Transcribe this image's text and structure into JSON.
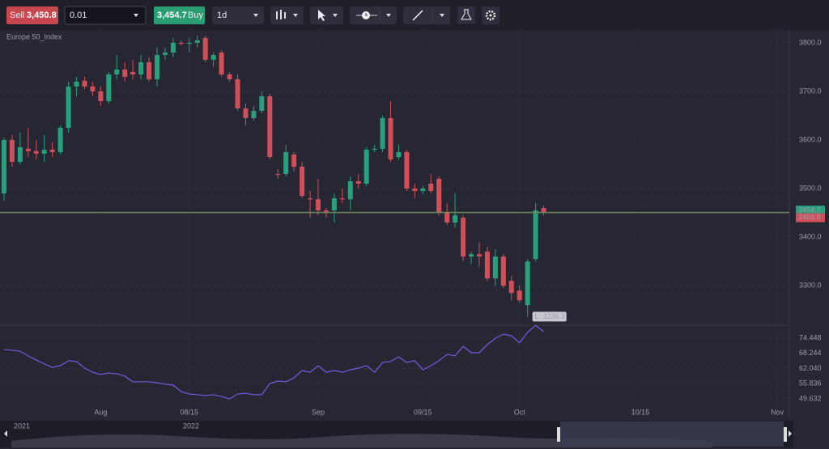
{
  "toolbar": {
    "sell_label": "Sell",
    "sell_price": "3,450.8",
    "lot": "0.01",
    "buy_price": "3,454.7",
    "buy_label": "Buy",
    "interval": "1d"
  },
  "chart_data": {
    "type": "candlestick",
    "title": "Europe 50_Index",
    "categories": [
      null,
      null,
      null,
      null,
      null,
      null,
      null,
      null,
      null,
      null,
      null,
      null,
      "Aug",
      null,
      null,
      null,
      null,
      null,
      null,
      null,
      null,
      null,
      null,
      "08/15",
      null,
      null,
      null,
      null,
      null,
      null,
      null,
      null,
      null,
      null,
      null,
      null,
      null,
      null,
      null,
      "Sep",
      null,
      null,
      null,
      null,
      null,
      null,
      null,
      null,
      null,
      null,
      null,
      null,
      "09/15",
      null,
      null,
      null,
      null,
      null,
      null,
      null,
      null,
      null,
      null,
      null,
      "Oct",
      null,
      null,
      null,
      null,
      null,
      null,
      null,
      null,
      null,
      null,
      null,
      null,
      null,
      null,
      "10/15",
      null,
      null,
      null,
      null,
      null,
      null,
      null,
      null,
      null,
      null,
      null,
      null,
      null,
      null,
      null,
      null,
      "Nov",
      null
    ],
    "open": [
      3490,
      3600,
      3555,
      3582,
      3577,
      3572,
      3580,
      3575,
      3625,
      3710,
      3722,
      3710,
      3700,
      3680,
      3735,
      3745,
      3740,
      3735,
      3760,
      3725,
      3775,
      3780,
      3800,
      3798,
      3800,
      3810,
      3765,
      3780,
      3735,
      3725,
      3665,
      3645,
      3660,
      3690,
      3530,
      3530,
      3570,
      3545,
      3480,
      3478,
      3455,
      3455,
      3480,
      3478,
      3515,
      3510,
      3580,
      3582,
      3645,
      3565,
      3575,
      3500,
      3495,
      3510,
      3520,
      3450,
      3430,
      3440,
      3360,
      3365,
      3370,
      3315,
      3360,
      3310,
      3290,
      3260,
      3355,
      3460,
      null,
      null,
      null,
      null,
      null,
      null,
      null,
      null,
      null,
      null,
      null,
      null,
      null,
      null,
      null,
      null,
      null,
      null,
      null,
      null,
      null,
      null,
      null,
      null,
      null,
      null,
      null,
      null,
      null,
      null
    ],
    "high": [
      3605,
      3610,
      3615,
      3625,
      3600,
      3610,
      3595,
      3630,
      3720,
      3730,
      3730,
      3720,
      3710,
      3740,
      3775,
      3760,
      3765,
      3775,
      3770,
      3790,
      3790,
      3810,
      3805,
      3810,
      3815,
      3815,
      3780,
      3785,
      3740,
      3735,
      3675,
      3670,
      3700,
      3695,
      3540,
      3590,
      3575,
      3555,
      3495,
      3520,
      3460,
      3490,
      3500,
      3525,
      3530,
      3585,
      3590,
      3650,
      3680,
      3590,
      3580,
      3510,
      3505,
      3530,
      3525,
      3470,
      3490,
      3445,
      3370,
      3390,
      3380,
      3375,
      3365,
      3320,
      3300,
      3355,
      3470,
      3465,
      null,
      null,
      null,
      null,
      null,
      null,
      null,
      null,
      null,
      null,
      null,
      null,
      null,
      null,
      null,
      null,
      null,
      null,
      null,
      null,
      null,
      null,
      null,
      null,
      null,
      null,
      null,
      null,
      null,
      null
    ],
    "low": [
      3475,
      3545,
      3550,
      3565,
      3560,
      3555,
      3565,
      3570,
      3615,
      3690,
      3705,
      3690,
      3670,
      3675,
      3725,
      3720,
      3725,
      3725,
      3720,
      3710,
      3765,
      3770,
      3795,
      3780,
      3790,
      3760,
      3750,
      3730,
      3720,
      3660,
      3630,
      3640,
      3655,
      3560,
      3520,
      3525,
      3535,
      3480,
      3440,
      3445,
      3440,
      3430,
      3470,
      3455,
      3500,
      3505,
      3575,
      3575,
      3555,
      3560,
      3495,
      3480,
      3488,
      3490,
      3445,
      3425,
      3420,
      3350,
      3345,
      3340,
      3310,
      3300,
      3295,
      3270,
      3265,
      3236.3,
      3350,
      3445,
      null,
      null,
      null,
      null,
      null,
      null,
      null,
      null,
      null,
      null,
      null,
      null,
      null,
      null,
      null,
      null,
      null,
      null,
      null,
      null,
      null,
      null,
      null,
      null,
      null,
      null,
      null,
      null,
      null,
      null
    ],
    "close": [
      3600,
      3555,
      3585,
      3577,
      3572,
      3580,
      3575,
      3625,
      3710,
      3720,
      3710,
      3700,
      3680,
      3735,
      3745,
      3730,
      3735,
      3760,
      3725,
      3775,
      3780,
      3800,
      3798,
      3800,
      3805,
      3765,
      3775,
      3735,
      3725,
      3665,
      3645,
      3660,
      3690,
      3565,
      3528,
      3575,
      3545,
      3485,
      3478,
      3455,
      3452,
      3480,
      3478,
      3515,
      3510,
      3580,
      3582,
      3645,
      3560,
      3575,
      3500,
      3495,
      3500,
      3495,
      3450,
      3430,
      3445,
      3360,
      3365,
      3360,
      3315,
      3360,
      3300,
      3285,
      3270,
      3350,
      3455,
      3452,
      null,
      null,
      null,
      null,
      null,
      null,
      null,
      null,
      null,
      null,
      null,
      null,
      null,
      null,
      null,
      null,
      null,
      null,
      null,
      null,
      null,
      null,
      null,
      null,
      null,
      null,
      null,
      null,
      null,
      null
    ],
    "up_color": "#26a17b",
    "down_color": "#d24f5a",
    "ylim": [
      3222,
      3826.5
    ],
    "yticks": [
      {
        "value": 3300,
        "label": "3300.0"
      },
      {
        "value": 3400,
        "label": "3400.0"
      },
      {
        "value": 3500,
        "label": "3500.0"
      },
      {
        "value": 3600,
        "label": "3600.0"
      },
      {
        "value": 3700,
        "label": "3700.0"
      },
      {
        "value": 3800,
        "label": "3800.0"
      }
    ],
    "grid": true,
    "ask": 3454.7,
    "bid": 3450.8,
    "price_line_color": "#6f8a5c",
    "annotation": "L: 3236.3",
    "indicator": {
      "color": "#7b55e0",
      "ylim": [
        45.66,
        80.4
      ],
      "yticks": [
        49.632,
        55.836,
        {
          "value": 62.04,
          "label": "62.040"
        },
        68.244,
        74.448
      ],
      "values": [
        69.8,
        69.5,
        69.1,
        67.2,
        65.5,
        63.9,
        62.5,
        63.2,
        65.2,
        64.9,
        62.2,
        60.5,
        59.6,
        60.2,
        59.9,
        58.9,
        56.6,
        56.6,
        56.6,
        56.2,
        55.6,
        55.3,
        52.6,
        51.6,
        51.3,
        51.0,
        51.3,
        50.6,
        49.6,
        51.6,
        51.9,
        51.3,
        51.3,
        55.9,
        56.9,
        56.6,
        58.2,
        61.2,
        60.5,
        63.2,
        60.5,
        61.2,
        60.5,
        61.5,
        62.2,
        63.2,
        60.5,
        64.5,
        64.9,
        66.8,
        64.5,
        65.2,
        61.5,
        63.2,
        65.2,
        67.8,
        67.2,
        71.1,
        68.5,
        68.5,
        71.8,
        74.4,
        76.1,
        75.4,
        72.5,
        76.8,
        79.7,
        77.1,
        null,
        null,
        null,
        null,
        null,
        null,
        null,
        null,
        null,
        null,
        null,
        null,
        null,
        null,
        null,
        null,
        null,
        null,
        null,
        null,
        null,
        null,
        null,
        null,
        null,
        null,
        null,
        null,
        null,
        null
      ]
    }
  },
  "navigator": {
    "labels": [
      "2021",
      "2022"
    ]
  }
}
